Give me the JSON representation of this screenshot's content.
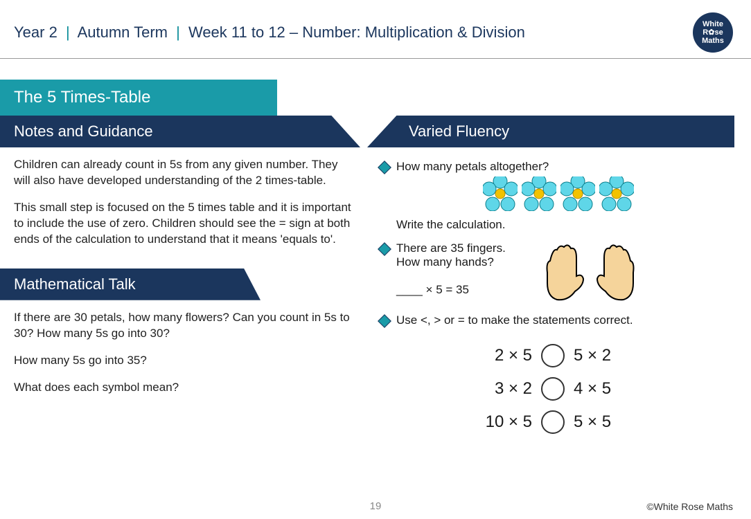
{
  "header": {
    "year": "Year 2",
    "term": "Autumn Term",
    "week": "Week 11 to 12 – Number: Multiplication & Division",
    "logo_lines": [
      "White",
      "R✿se",
      "Maths"
    ],
    "logo_bg": "#1b365d"
  },
  "topic": "The 5 Times-Table",
  "sections": {
    "notes_title": "Notes and Guidance",
    "notes_p1": "Children can already count in 5s from any given number. They will also have developed understanding of the 2 times-table.",
    "notes_p2": "This small step is focused on the 5 times table and it is important to include the use of zero. Children should see the = sign at both ends of the calculation to understand that it means 'equals to'.",
    "mtalk_title": "Mathematical Talk",
    "mtalk_q1": "If there are 30 petals, how many flowers? Can you count in 5s to 30? How many 5s go into 30?",
    "mtalk_q2": "How many 5s go into 35?",
    "mtalk_q3": "What does each symbol mean?",
    "varied_title": "Varied Fluency",
    "vf1": "How many petals altogether?",
    "vf1b": "Write the calculation.",
    "vf2a": "There are 35 fingers.",
    "vf2b": "How many hands?",
    "vf2_eq": "____ × 5 = 35",
    "vf3": "Use <, > or = to make the statements correct.",
    "compare_rows": [
      {
        "left": "2 × 5",
        "right": "5 × 2"
      },
      {
        "left": "3 × 2",
        "right": "4 × 5"
      },
      {
        "left": "10 × 5",
        "right": "5 × 5"
      }
    ]
  },
  "flowers": {
    "count": 4,
    "petal_color": "#5fd6e8",
    "center_color": "#f2c200"
  },
  "hands": {
    "count": 2,
    "fill": "#f5d49b",
    "stroke": "#000"
  },
  "colors": {
    "teal": "#1a9ba8",
    "navy": "#1b365d",
    "bullet_fill": "#1a9ba8"
  },
  "page_number": "19",
  "copyright": "©White Rose Maths"
}
